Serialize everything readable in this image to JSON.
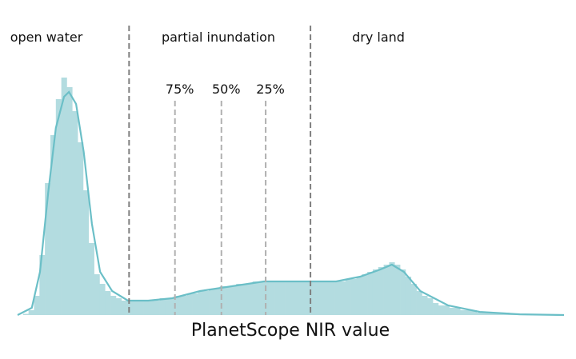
{
  "chart_data": {
    "type": "histogram",
    "xlabel": "PlanetScope NIR value",
    "xlim": [
      0,
      100
    ],
    "ylim": [
      0,
      100
    ],
    "color": "#b3dce0",
    "line_color": "#6bbfc7",
    "bins": [
      0,
      1,
      2,
      3,
      4,
      5,
      6,
      7,
      8,
      9,
      10,
      11,
      12,
      13,
      14,
      15,
      16,
      17,
      18,
      19,
      20,
      21,
      22,
      23,
      24,
      25,
      26,
      27,
      28,
      29,
      30,
      31,
      32,
      33,
      34,
      35,
      36,
      37,
      38,
      39,
      40,
      41,
      42,
      43,
      44,
      45,
      46,
      47,
      48,
      49,
      50,
      51,
      52,
      53,
      54,
      55,
      56,
      57,
      58,
      59,
      60,
      61,
      62,
      63,
      64,
      65,
      66,
      67,
      68,
      69,
      70,
      71,
      72,
      73,
      74,
      75,
      76,
      77,
      78,
      79,
      80,
      81,
      82,
      83,
      84,
      85,
      86,
      87,
      88,
      89,
      90,
      91,
      92,
      93,
      94,
      95,
      96,
      97,
      98,
      99,
      100
    ],
    "counts": [
      0,
      0.5,
      2,
      8,
      25,
      55,
      75,
      90,
      99,
      95,
      85,
      72,
      52,
      30,
      17,
      13,
      10,
      8,
      7,
      6,
      6,
      6,
      6,
      6,
      6,
      6,
      7,
      7,
      7,
      8,
      8,
      9,
      9,
      10,
      10,
      11,
      11,
      12,
      12,
      12,
      13,
      13,
      13,
      14,
      14,
      14,
      14,
      14,
      14,
      14,
      14,
      14,
      14,
      14,
      14,
      14,
      14,
      14,
      14,
      14,
      15,
      15,
      16,
      17,
      18,
      19,
      20,
      21,
      22,
      21,
      19,
      16,
      13,
      10,
      8,
      7,
      5,
      4,
      4,
      3,
      3,
      2,
      2,
      2,
      1,
      1,
      1,
      1,
      1,
      1,
      0.5,
      0.5,
      0.5,
      0.5,
      0.3,
      0.3,
      0.2,
      0.2,
      0.1,
      0.1
    ],
    "kde": {
      "x": [
        0,
        2.6,
        4.1,
        5.6,
        7.0,
        8.5,
        9.4,
        10.7,
        12.1,
        13.6,
        15.1,
        17.3,
        20.2,
        23.9,
        28.3,
        33.4,
        39.2,
        45.1,
        50.9,
        58.3,
        62.7,
        66.4,
        68.5,
        70.7,
        73.7,
        78.8,
        84.6,
        91.9,
        100
      ],
      "y": [
        0,
        3,
        18,
        51,
        78,
        91,
        93,
        88,
        68,
        38,
        18,
        10,
        6,
        6,
        7,
        10,
        12,
        14,
        14,
        14,
        16,
        19,
        21,
        18,
        10,
        4,
        1.3,
        0.3,
        0
      ]
    },
    "regions": [
      "open water",
      "partial inundation",
      "dry land"
    ],
    "thresholds": [
      20.4,
      53.6
    ],
    "inundation_levels": [
      {
        "value": 28.8,
        "label": "75%"
      },
      {
        "value": 37.3,
        "label": "50%"
      },
      {
        "value": 45.4,
        "label": "25%"
      }
    ]
  }
}
